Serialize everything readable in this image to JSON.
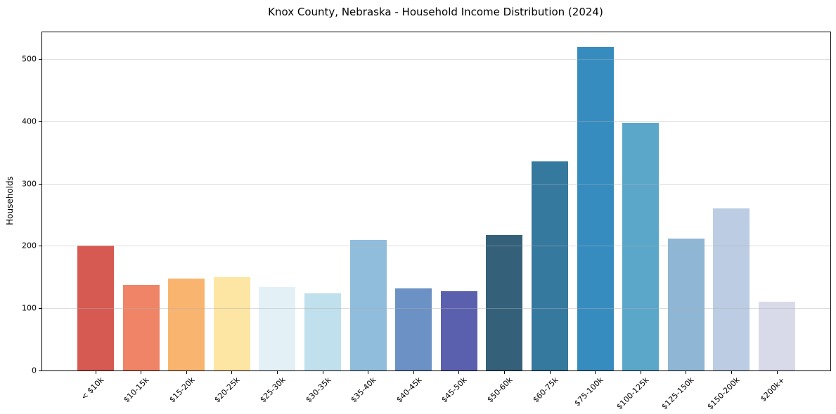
{
  "chart_data": {
    "type": "bar",
    "title": "Knox County, Nebraska - Household Income Distribution (2024)",
    "xlabel": "",
    "ylabel": "Households",
    "categories": [
      "< $10k",
      "$10-15k",
      "$15-20k",
      "$20-25k",
      "$25-30k",
      "$30-35k",
      "$35-40k",
      "$40-45k",
      "$45-50k",
      "$50-60k",
      "$60-75k",
      "$75-100k",
      "$100-125k",
      "$125-150k",
      "$150-200k",
      "$200k+"
    ],
    "values": [
      201,
      138,
      148,
      150,
      134,
      124,
      210,
      132,
      127,
      217,
      336,
      519,
      398,
      212,
      260,
      110
    ],
    "bar_colors": [
      "#d65a52",
      "#f08466",
      "#f9b46f",
      "#fde5a3",
      "#e3f1f6",
      "#bfe0ec",
      "#91bddc",
      "#6b91c5",
      "#5b60ae",
      "#34607a",
      "#36799e",
      "#378cbf",
      "#5ba7ca",
      "#8fb7d5",
      "#bccce3",
      "#d9dae9"
    ],
    "ylim": [
      0,
      543
    ],
    "yticks": [
      0,
      100,
      200,
      300,
      400,
      500
    ],
    "grid": "horizontal-light",
    "gridline_color": "#d8d8d8",
    "spine_color": "#000000",
    "background": "#ffffff",
    "legend_position": "none"
  }
}
